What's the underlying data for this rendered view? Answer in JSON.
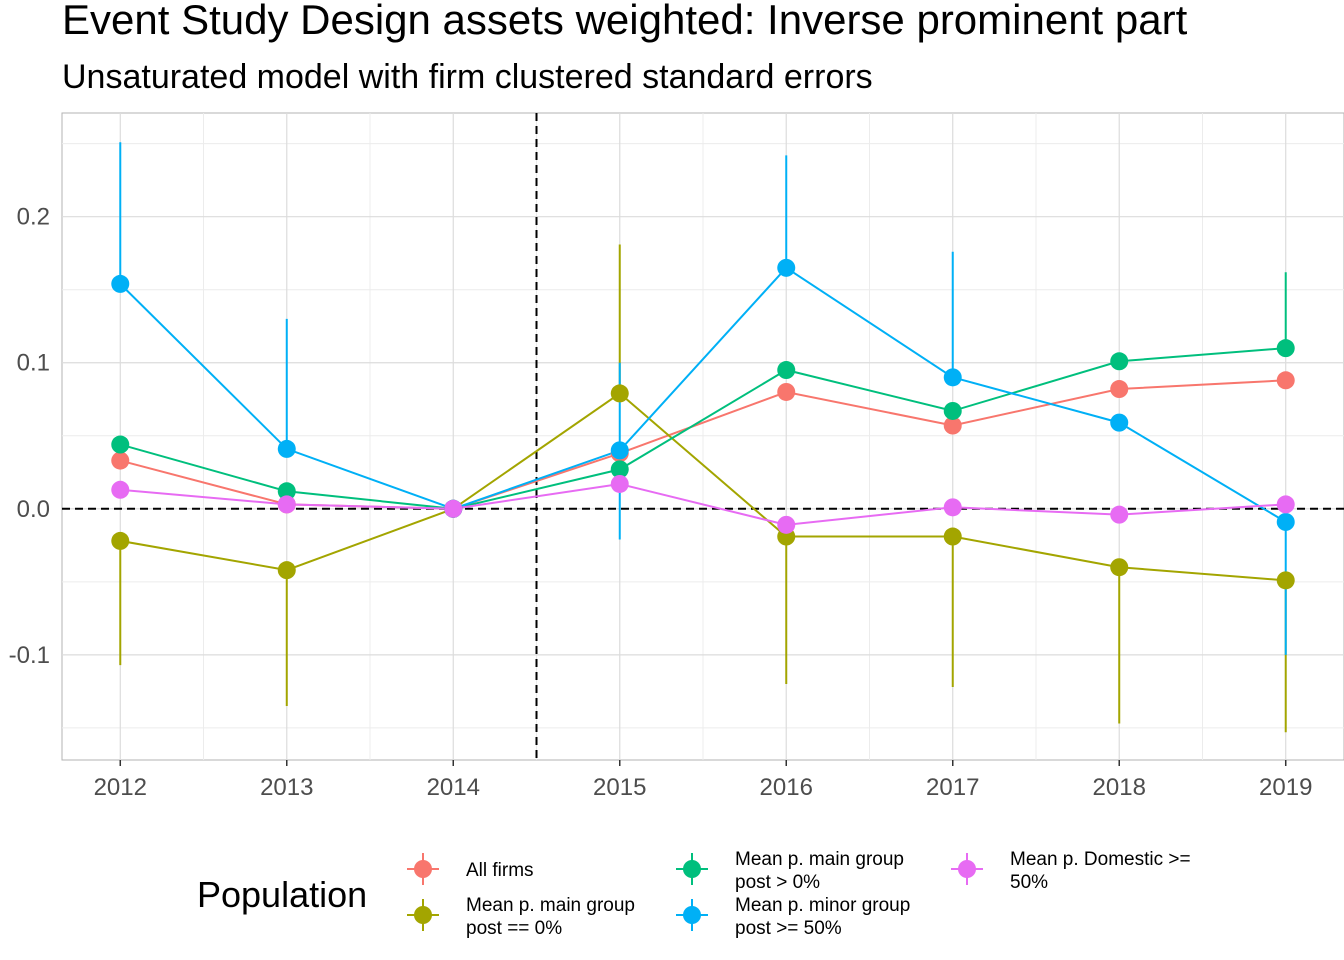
{
  "chart_data": {
    "type": "line",
    "title": "Event Study Design assets weighted: Inverse prominent part",
    "subtitle": "Unsaturated model with firm clustered standard errors",
    "xlabel": "",
    "ylabel": "",
    "x": [
      2012,
      2013,
      2014,
      2015,
      2016,
      2017,
      2018,
      2019
    ],
    "xlim": [
      2011.65,
      2019.35
    ],
    "ylim": [
      -0.172,
      0.271
    ],
    "y_ticks": [
      "0.2",
      "0.1",
      "0.0",
      "-0.1"
    ],
    "y_tick_values": [
      0.2,
      0.1,
      0.0,
      -0.1
    ],
    "vline": 2014.5,
    "hline": 0.0,
    "grid": true,
    "legend_position": "bottom",
    "legend_title": "Population",
    "series": [
      {
        "name": "All firms",
        "label_lines": [
          "All firms"
        ],
        "color": "#F8766D",
        "values": [
          0.033,
          0.003,
          0.0,
          0.038,
          0.08,
          0.057,
          0.082,
          0.088
        ],
        "lower": [
          null,
          null,
          null,
          null,
          null,
          null,
          null,
          null
        ],
        "upper": [
          null,
          null,
          null,
          null,
          null,
          null,
          null,
          null
        ]
      },
      {
        "name": "Mean p. main group post == 0%",
        "label_lines": [
          "Mean p. main group",
          "post == 0%"
        ],
        "color": "#A3A500",
        "values": [
          -0.022,
          -0.042,
          0.0,
          0.079,
          -0.019,
          -0.019,
          -0.04,
          -0.049
        ],
        "lower": [
          -0.107,
          -0.135,
          null,
          null,
          -0.12,
          -0.122,
          -0.147,
          -0.153
        ],
        "upper": [
          null,
          null,
          null,
          0.181,
          null,
          null,
          null,
          null
        ]
      },
      {
        "name": "Mean p. main group post > 0%",
        "label_lines": [
          "Mean p. main group",
          "post > 0%"
        ],
        "color": "#00BF7D",
        "values": [
          0.044,
          0.012,
          0.0,
          0.027,
          0.095,
          0.067,
          0.101,
          0.11
        ],
        "lower": [
          null,
          null,
          null,
          null,
          null,
          null,
          null,
          null
        ],
        "upper": [
          null,
          null,
          null,
          null,
          null,
          null,
          null,
          0.162
        ]
      },
      {
        "name": "Mean p. minor group post >= 50%",
        "label_lines": [
          "Mean p. minor group",
          "post >= 50%"
        ],
        "color": "#00B0F6",
        "values": [
          0.154,
          0.041,
          0.0,
          0.04,
          0.165,
          0.09,
          0.059,
          -0.009
        ],
        "lower": [
          null,
          null,
          null,
          -0.021,
          null,
          null,
          null,
          -0.1
        ],
        "upper": [
          0.251,
          0.13,
          null,
          0.1,
          0.242,
          0.176,
          null,
          null
        ]
      },
      {
        "name": "Mean p. Domestic >= 50%",
        "label_lines": [
          "Mean p. Domestic >=",
          "50%"
        ],
        "color": "#E76BF3",
        "values": [
          0.013,
          0.003,
          0.0,
          0.017,
          -0.011,
          0.001,
          -0.004,
          0.003
        ],
        "lower": [
          null,
          null,
          null,
          null,
          null,
          null,
          null,
          null
        ],
        "upper": [
          null,
          null,
          null,
          null,
          null,
          null,
          null,
          null
        ]
      }
    ]
  }
}
